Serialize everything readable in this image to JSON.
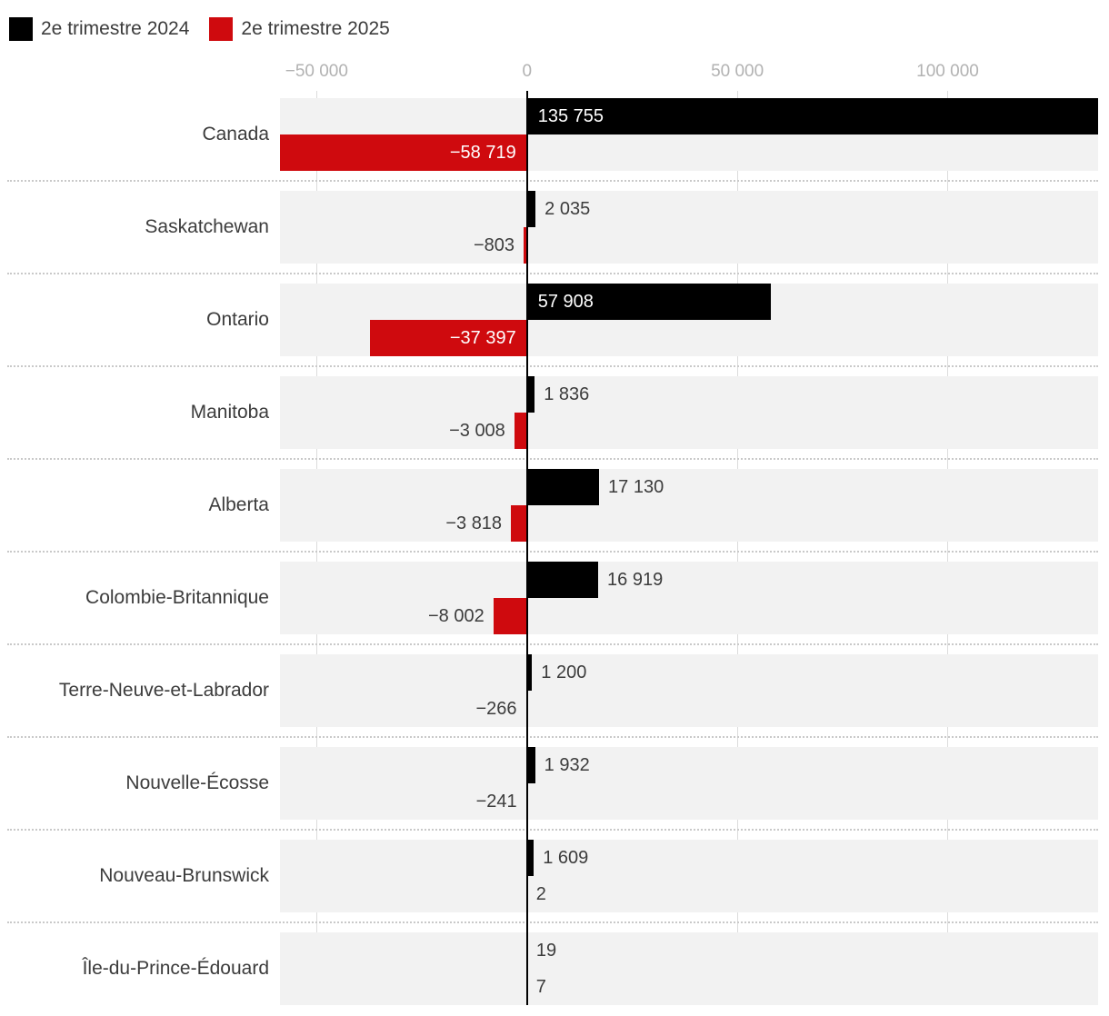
{
  "legend": {
    "items": [
      {
        "label": "2e trimestre 2024",
        "color": "#000000"
      },
      {
        "label": "2e trimestre 2025",
        "color": "#cf0a0e"
      }
    ]
  },
  "chart_data": {
    "type": "bar",
    "orientation": "horizontal",
    "grid": true,
    "legend_position": "top-left",
    "categories": [
      "Canada",
      "Saskatchewan",
      "Ontario",
      "Manitoba",
      "Alberta",
      "Colombie-Britannique",
      "Terre-Neuve-et-Labrador",
      "Nouvelle-Écosse",
      "Nouveau-Brunswick",
      "Île-du-Prince-Édouard"
    ],
    "series": [
      {
        "name": "2e trimestre 2024",
        "color": "#000000",
        "values": [
          135755,
          2035,
          57908,
          1836,
          17130,
          16919,
          1200,
          1932,
          1609,
          19
        ],
        "labels": [
          "135 755",
          "2 035",
          "57 908",
          "1 836",
          "17 130",
          "16 919",
          "1 200",
          "1 932",
          "1 609",
          "19"
        ]
      },
      {
        "name": "2e trimestre 2025",
        "color": "#cf0a0e",
        "values": [
          -58719,
          -803,
          -37397,
          -3008,
          -3818,
          -8002,
          -266,
          -241,
          2,
          7
        ],
        "labels": [
          "−58 719",
          "−803",
          "−37 397",
          "−3 008",
          "−3 818",
          "−8 002",
          "−266",
          "−241",
          "2",
          "7"
        ]
      }
    ],
    "xlim": [
      -58719,
      135755
    ],
    "x_ticks": [
      -50000,
      0,
      50000,
      100000
    ],
    "x_tick_labels": [
      "−50 000",
      "0",
      "50 000",
      "100 000"
    ],
    "xlabel": "",
    "ylabel": "",
    "title": ""
  },
  "style": {
    "band_color": "#f2f2f2",
    "gridline_color": "#dcdcdc",
    "separator_color": "#c9c9c9",
    "axis_text_color": "#b2b2b2",
    "label_text_color": "#3c3c3c",
    "inside_label_color": "#ffffff"
  }
}
